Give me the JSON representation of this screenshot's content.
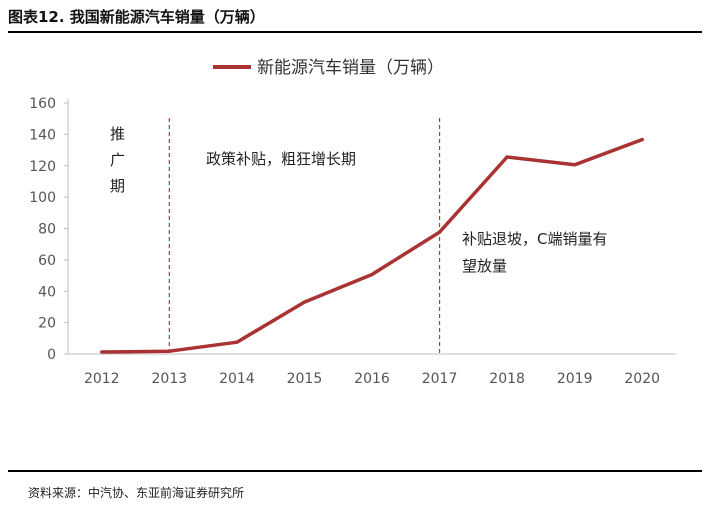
{
  "figure": {
    "title": "图表12. 我国新能源汽车销量（万辆）",
    "source": "资料来源：中汽协、东亚前海证券研究所"
  },
  "colors": {
    "series": "#A83332",
    "axis": "#bfbfbf",
    "divider": "#b03a3a"
  },
  "chart_data": {
    "type": "line",
    "title": "",
    "xlabel": "",
    "ylabel": "",
    "x": [
      "2012",
      "2013",
      "2014",
      "2015",
      "2016",
      "2017",
      "2018",
      "2019",
      "2020"
    ],
    "series": [
      {
        "name": "新能源汽车销量（万辆）",
        "values": [
          1.3,
          1.8,
          7.5,
          33.1,
          50.7,
          77.7,
          125.6,
          120.6,
          136.7
        ]
      }
    ],
    "ylim": [
      0,
      160
    ],
    "yticks": [
      "0",
      "20",
      "40",
      "60",
      "80",
      "100",
      "120",
      "140",
      "160"
    ],
    "grid": false,
    "legend": "top-center",
    "dividers_at": [
      "2013",
      "2017"
    ],
    "annotations": [
      {
        "id": "phase1",
        "lines": [
          "推",
          "广",
          "期"
        ]
      },
      {
        "id": "phase2",
        "lines": [
          "政策补贴，粗狂增长期"
        ]
      },
      {
        "id": "phase3",
        "lines": [
          "补贴退坡，C端销量有",
          "望放量"
        ]
      }
    ]
  }
}
